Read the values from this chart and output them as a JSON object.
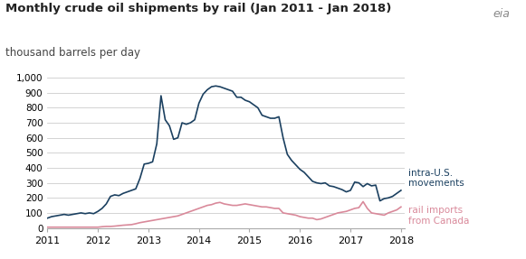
{
  "title": "Monthly crude oil shipments by rail (Jan 2011 - Jan 2018)",
  "subtitle": "thousand barrels per day",
  "title_fontsize": 9.5,
  "subtitle_fontsize": 8.5,
  "ylim": [
    0,
    1000
  ],
  "yticks": [
    0,
    100,
    200,
    300,
    400,
    500,
    600,
    700,
    800,
    900,
    1000
  ],
  "ytick_labels": [
    "0",
    "100",
    "200",
    "300",
    "400",
    "500",
    "600",
    "700",
    "800",
    "900",
    "1,000"
  ],
  "xtick_labels": [
    "2011",
    "2012",
    "2013",
    "2014",
    "2015",
    "2016",
    "2017",
    "2018"
  ],
  "line1_color": "#1b4060",
  "line2_color": "#d9899a",
  "line1_label": "intra-U.S.\nmovements",
  "line2_label": "rail imports\nfrom Canada",
  "background_color": "#ffffff",
  "intra_us": [
    65,
    75,
    80,
    85,
    90,
    85,
    90,
    95,
    100,
    95,
    100,
    95,
    110,
    130,
    160,
    210,
    220,
    215,
    230,
    240,
    250,
    260,
    330,
    425,
    430,
    440,
    560,
    880,
    720,
    680,
    590,
    600,
    700,
    690,
    700,
    720,
    830,
    890,
    920,
    940,
    945,
    940,
    930,
    920,
    910,
    870,
    870,
    850,
    840,
    820,
    800,
    750,
    740,
    730,
    730,
    740,
    600,
    490,
    450,
    420,
    390,
    370,
    340,
    310,
    300,
    295,
    300,
    280,
    275,
    265,
    255,
    240,
    250,
    305,
    300,
    275,
    295,
    280,
    285,
    180,
    195,
    200,
    210,
    230,
    250
  ],
  "canada": [
    5,
    5,
    5,
    5,
    5,
    5,
    5,
    5,
    5,
    5,
    5,
    5,
    5,
    8,
    10,
    10,
    12,
    15,
    18,
    20,
    22,
    28,
    35,
    40,
    45,
    50,
    55,
    60,
    65,
    70,
    75,
    80,
    90,
    100,
    110,
    120,
    130,
    140,
    150,
    155,
    165,
    170,
    160,
    155,
    150,
    150,
    155,
    160,
    155,
    150,
    145,
    140,
    140,
    135,
    130,
    130,
    100,
    95,
    90,
    85,
    75,
    70,
    65,
    65,
    55,
    60,
    70,
    80,
    90,
    100,
    105,
    110,
    120,
    130,
    135,
    175,
    130,
    100,
    95,
    90,
    85,
    100,
    110,
    120,
    140
  ]
}
